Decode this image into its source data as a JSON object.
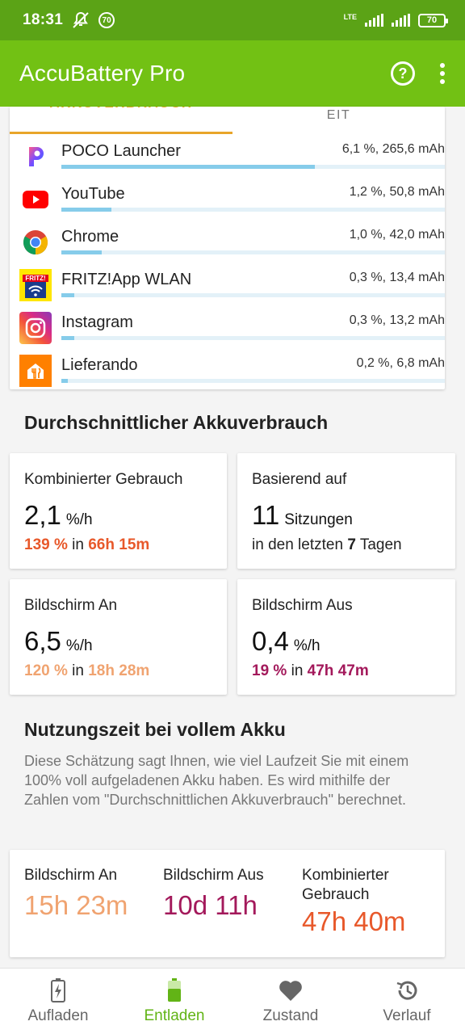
{
  "status_bar": {
    "time": "18:31",
    "notification_badge": "70",
    "network": "LTE",
    "battery_level": "70"
  },
  "app_bar": {
    "title": "AccuBattery Pro",
    "help_icon": "help-circle-icon",
    "more_icon": "more-vert-icon"
  },
  "tabs": {
    "active": "AKKUVERBRAUCH",
    "inactive": "EIT"
  },
  "apps": [
    {
      "name": "POCO Launcher",
      "stat": "6,1 %, 265,6 mAh",
      "fraction": 0.66,
      "icon": "poco-launcher-icon"
    },
    {
      "name": "YouTube",
      "stat": "1,2 %, 50,8 mAh",
      "fraction": 0.13,
      "icon": "youtube-icon"
    },
    {
      "name": "Chrome",
      "stat": "1,0 %, 42,0 mAh",
      "fraction": 0.105,
      "icon": "chrome-icon"
    },
    {
      "name": "FRITZ!App WLAN",
      "stat": "0,3 %, 13,4 mAh",
      "fraction": 0.033,
      "icon": "fritz-app-icon"
    },
    {
      "name": "Instagram",
      "stat": "0,3 %, 13,2 mAh",
      "fraction": 0.033,
      "icon": "instagram-icon"
    },
    {
      "name": "Lieferando",
      "stat": "0,2 %, 6,8 mAh",
      "fraction": 0.017,
      "icon": "lieferando-icon"
    }
  ],
  "fritz_label": "FRITZ!",
  "average": {
    "title": "Durchschnittlicher Akkuverbrauch",
    "combined": {
      "label": "Kombinierter Gebrauch",
      "value": "2,1",
      "unit": "%/h",
      "pct": "139 %",
      "in": "in",
      "time": "66h 15m"
    },
    "based_on": {
      "label": "Basierend auf",
      "value": "11",
      "unit": "Sitzungen",
      "prefix": "in den letzten",
      "days": "7",
      "suffix": "Tagen"
    },
    "screen_on": {
      "label": "Bildschirm An",
      "value": "6,5",
      "unit": "%/h",
      "pct": "120 %",
      "in": "in",
      "time": "18h 28m"
    },
    "screen_off": {
      "label": "Bildschirm Aus",
      "value": "0,4",
      "unit": "%/h",
      "pct": "19 %",
      "in": "in",
      "time": "47h 47m"
    }
  },
  "full": {
    "title": "Nutzungszeit bei vollem Akku",
    "description": "Diese Schätzung sagt Ihnen, wie viel Laufzeit Sie mit einem 100% voll aufgeladenen Akku haben. Es wird mithilfe der Zahlen vom \"Durchschnittlichen Akkuverbrauch\" berechnet.",
    "screen_on": {
      "label": "Bildschirm An",
      "value": "15h 23m"
    },
    "screen_off": {
      "label": "Bildschirm Aus",
      "value": "10d 11h"
    },
    "combined": {
      "label": "Kombinierter Gebrauch",
      "value": "47h 40m"
    }
  },
  "nav": [
    {
      "label": "Aufladen",
      "icon": "battery-charging-icon"
    },
    {
      "label": "Entladen",
      "icon": "battery-discharge-icon"
    },
    {
      "label": "Zustand",
      "icon": "heart-icon"
    },
    {
      "label": "Verlauf",
      "icon": "history-icon"
    }
  ],
  "colors": {
    "app_bar": "#72c114",
    "status_bar": "#5ba316",
    "accent_orange": "#e8a52a",
    "screen_on": "#f0a370",
    "screen_off": "#a3195b",
    "combined": "#e8582a",
    "nav_active": "#62b416"
  }
}
